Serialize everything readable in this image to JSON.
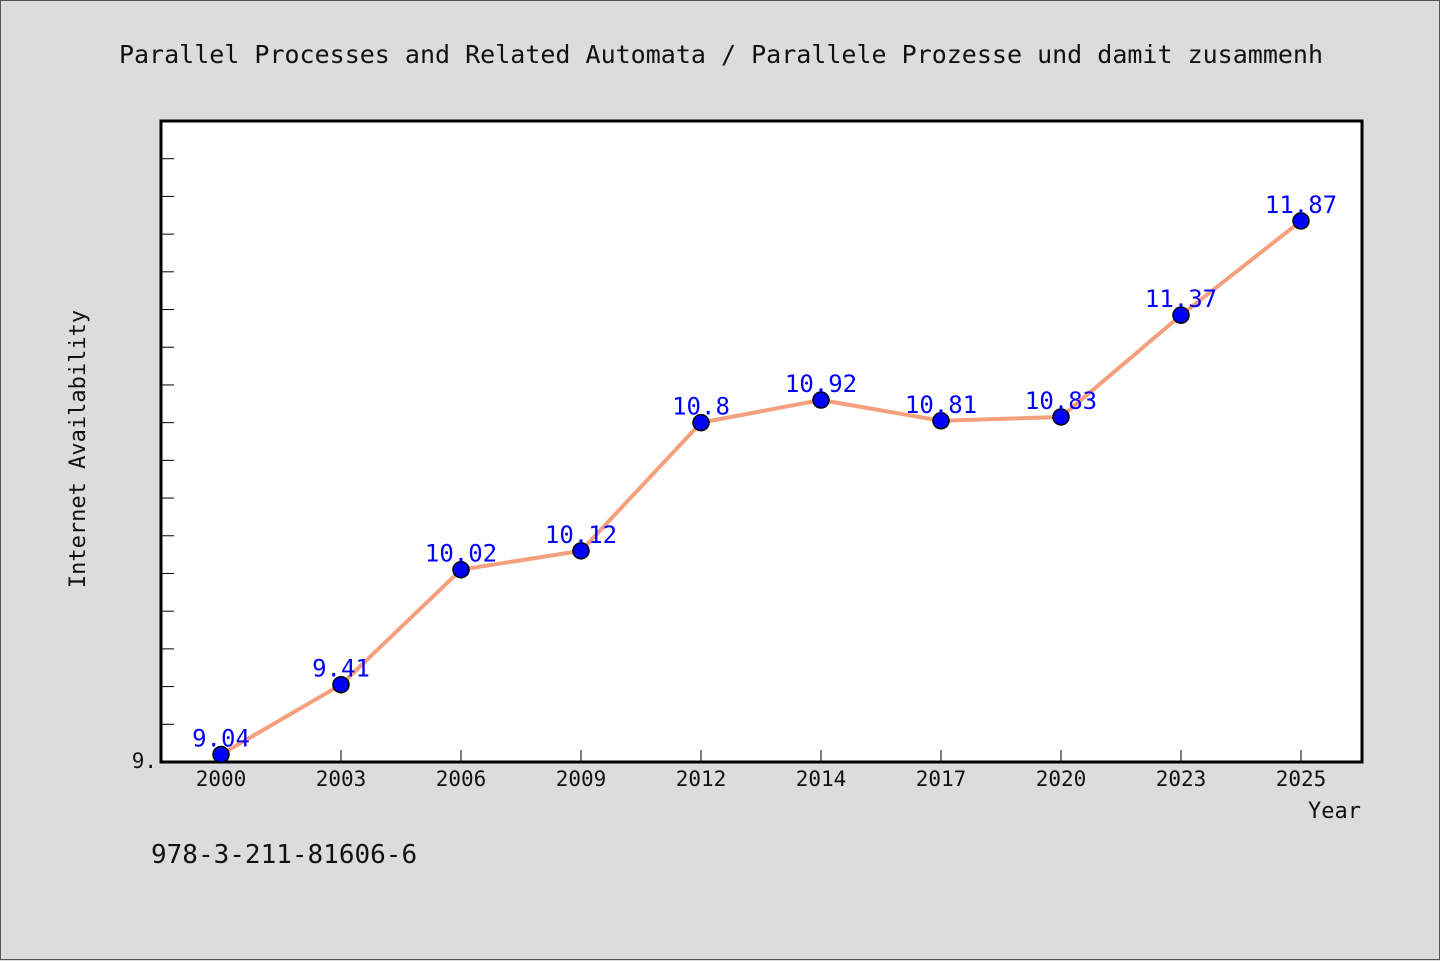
{
  "chart_data": {
    "type": "line",
    "title": "Parallel Processes and Related Automata / Parallele Prozesse und damit zusammenh",
    "xlabel": "Year",
    "ylabel": "Internet Availability",
    "categories": [
      "2000",
      "2003",
      "2006",
      "2009",
      "2012",
      "2014",
      "2017",
      "2020",
      "2023",
      "2025"
    ],
    "series": [
      {
        "values": [
          9.04,
          9.41,
          10.02,
          10.12,
          10.8,
          10.92,
          10.81,
          10.83,
          11.37,
          11.87
        ]
      }
    ],
    "data_labels": [
      "9.04",
      "9.41",
      "10.02",
      "10.12",
      "10.8",
      "10.92",
      "10.81",
      "10.83",
      "11.37",
      "11.87"
    ],
    "ylim": [
      9.0,
      12.4
    ],
    "y_tick_label": "9.",
    "line_color": "#f4a07c",
    "marker_color": "#0000ff",
    "label_color": "#0000ff",
    "grid": false,
    "legend": "none"
  },
  "footnote": "978-3-211-81606-6"
}
